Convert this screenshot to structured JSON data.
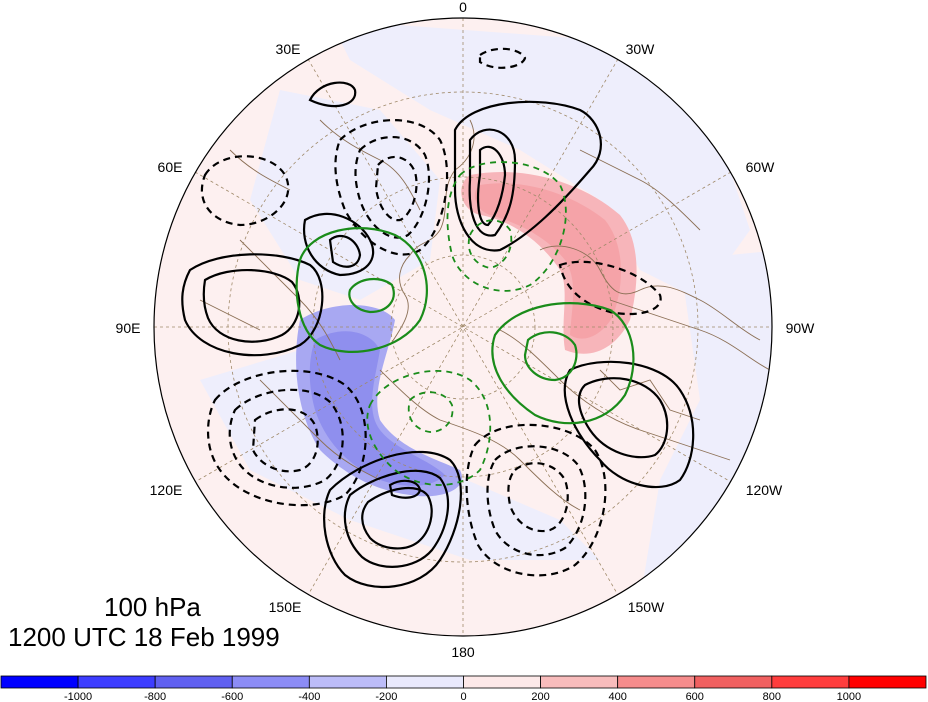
{
  "map": {
    "projection": "polar stereographic, north pole",
    "longitude_labels": [
      "0",
      "30W",
      "60W",
      "90W",
      "120W",
      "150W",
      "180",
      "150E",
      "120E",
      "90E",
      "60E",
      "30E"
    ],
    "level_label": "100 hPa",
    "time_label": "1200 UTC 18 Feb 1999",
    "contour_colors": {
      "solid": "#000000",
      "dashed": "#000000",
      "green": "#1a8c1a"
    },
    "shading": {
      "positive_color": "#f5a3a8",
      "negative_color": "#9f9ff0"
    },
    "coastline_color": "#8b6f55",
    "grid_color": "#a08a6a"
  },
  "colorbar": {
    "ticks": [
      "-1000",
      "-800",
      "-600",
      "-400",
      "-200",
      "0",
      "200",
      "400",
      "600",
      "800",
      "1000"
    ],
    "colors": [
      "#0000ff",
      "#3d3dff",
      "#6060f0",
      "#8c8cf5",
      "#bcbcf8",
      "#e9e9fc",
      "#fde9e9",
      "#f8bcbc",
      "#f58c8c",
      "#f06060",
      "#ff3d3d",
      "#ff0000"
    ]
  }
}
